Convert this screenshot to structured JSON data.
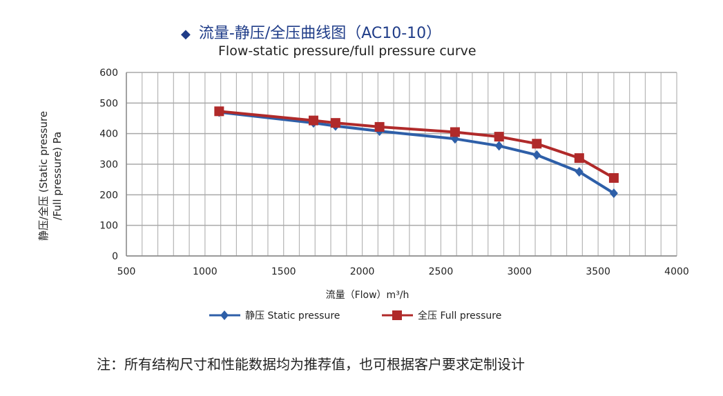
{
  "chart_data": {
    "type": "line",
    "title": "流量-静压/全压曲线图（AC10-10）",
    "subtitle": "Flow-static pressure/full pressure curve",
    "xlabel": "流量（Flow）m³/h",
    "ylabel": "静压/全压 (Static pressure /Full pressure) Pa",
    "ylabel_lines": [
      "静压/全压 (Static pressure",
      "/Full pressure) Pa"
    ],
    "xlim": [
      500,
      4000
    ],
    "ylim": [
      0,
      600
    ],
    "xticks": [
      500,
      1000,
      1500,
      2000,
      2500,
      3000,
      3500,
      4000
    ],
    "yticks": [
      0,
      100,
      200,
      300,
      400,
      500,
      600
    ],
    "grid": true,
    "legend_position": "bottom",
    "series": [
      {
        "name": "静压 Static pressure",
        "color": "#2e5fa8",
        "marker": "diamond",
        "x": [
          1090,
          1690,
          1830,
          2110,
          2590,
          2870,
          3110,
          3380,
          3600
        ],
        "y": [
          470,
          435,
          425,
          408,
          383,
          360,
          330,
          275,
          205
        ]
      },
      {
        "name": "全压 Full pressure",
        "color": "#b02a2a",
        "marker": "square",
        "x": [
          1090,
          1690,
          1830,
          2110,
          2590,
          2870,
          3110,
          3380,
          3600
        ],
        "y": [
          473,
          443,
          435,
          422,
          405,
          390,
          367,
          320,
          255
        ]
      }
    ]
  },
  "note": "注：所有结构尺寸和性能数据均为推荐值，也可根据客户要求定制设计",
  "title_marker": "◆"
}
